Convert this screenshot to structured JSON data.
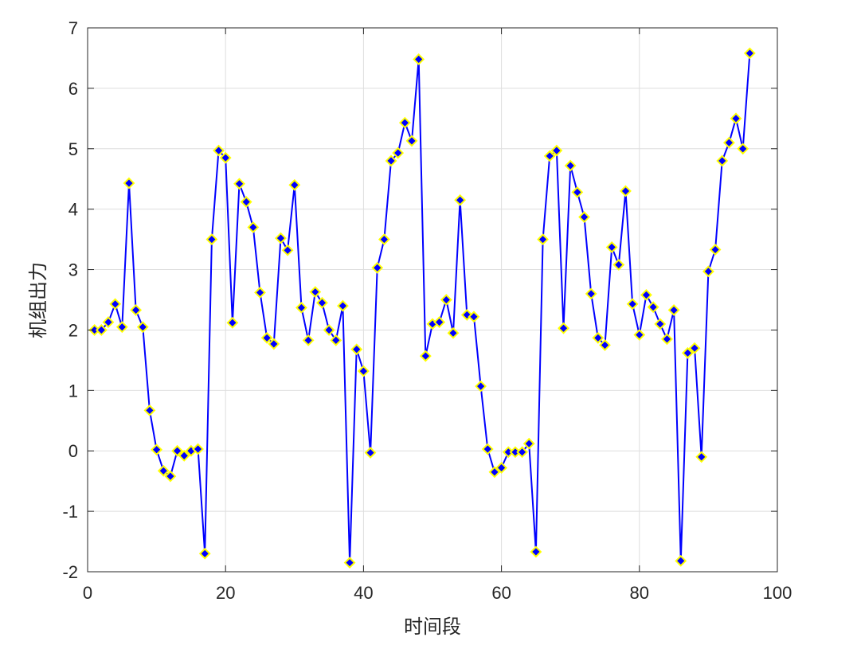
{
  "chart_data": {
    "type": "line",
    "title": "",
    "xlabel": "时间段",
    "ylabel": "机组出力",
    "xlim": [
      0,
      100
    ],
    "ylim": [
      -2,
      7
    ],
    "xticks": [
      0,
      20,
      40,
      60,
      80,
      100
    ],
    "yticks": [
      -2,
      -1,
      0,
      1,
      2,
      3,
      4,
      5,
      6,
      7
    ],
    "grid": true,
    "legend": "none",
    "series": [
      {
        "line_color": "#0000ff",
        "marker": "diamond",
        "marker_face_color": "#0000ff",
        "marker_edge_color": "#ffff00",
        "x": [
          1,
          2,
          3,
          4,
          5,
          6,
          7,
          8,
          9,
          10,
          11,
          12,
          13,
          14,
          15,
          16,
          17,
          18,
          19,
          20,
          21,
          22,
          23,
          24,
          25,
          26,
          27,
          28,
          29,
          30,
          31,
          32,
          33,
          34,
          35,
          36,
          37,
          38,
          39,
          40,
          41,
          42,
          43,
          44,
          45,
          46,
          47,
          48,
          49,
          50,
          51,
          52,
          53,
          54,
          55,
          56,
          57,
          58,
          59,
          60,
          61,
          62,
          63,
          64,
          65,
          66,
          67,
          68,
          69,
          70,
          71,
          72,
          73,
          74,
          75,
          76,
          77,
          78,
          79,
          80,
          81,
          82,
          83,
          84,
          85,
          86,
          87,
          88,
          89,
          90,
          91,
          92,
          93,
          94,
          95,
          96
        ],
        "y": [
          2.0,
          2.0,
          2.13,
          2.43,
          2.05,
          4.43,
          2.33,
          2.05,
          0.67,
          0.02,
          -0.33,
          -0.42,
          0.0,
          -0.08,
          0.0,
          0.03,
          -1.7,
          3.5,
          4.97,
          4.85,
          2.12,
          4.42,
          4.12,
          3.7,
          2.62,
          1.87,
          1.77,
          3.52,
          3.32,
          4.4,
          2.37,
          1.83,
          2.63,
          2.45,
          2.0,
          1.83,
          2.4,
          -1.85,
          1.68,
          1.32,
          -0.03,
          3.03,
          3.5,
          4.8,
          4.93,
          5.43,
          5.13,
          6.48,
          1.57,
          2.1,
          2.13,
          2.5,
          1.95,
          4.15,
          2.25,
          2.22,
          1.07,
          0.03,
          -0.35,
          -0.28,
          -0.02,
          -0.02,
          -0.02,
          0.12,
          -1.67,
          3.5,
          4.88,
          4.97,
          2.03,
          4.72,
          4.28,
          3.87,
          2.6,
          1.87,
          1.75,
          3.37,
          3.08,
          4.3,
          2.43,
          1.92,
          2.58,
          2.38,
          2.1,
          1.85,
          2.33,
          -1.82,
          1.62,
          1.7,
          -0.1,
          2.97,
          3.33,
          4.8,
          5.1,
          5.5,
          5.0,
          6.58
        ]
      }
    ]
  }
}
